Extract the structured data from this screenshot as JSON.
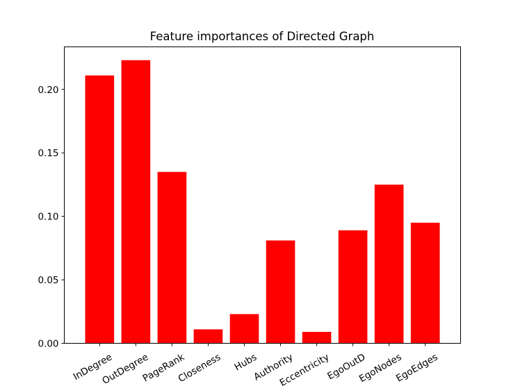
{
  "chart_data": {
    "type": "bar",
    "title": "Feature importances of Directed Graph",
    "xlabel": "",
    "ylabel": "",
    "categories": [
      "InDegree",
      "OutDegree",
      "PageRank",
      "Closeness",
      "Hubs",
      "Authority",
      "Eccentricity",
      "EgoOutD",
      "EgoNodes",
      "EgoEdges"
    ],
    "values": [
      0.211,
      0.223,
      0.135,
      0.011,
      0.023,
      0.081,
      0.009,
      0.089,
      0.125,
      0.095
    ],
    "ylim": [
      0,
      0.2335
    ],
    "yticks": [
      "0.00",
      "0.05",
      "0.10",
      "0.15",
      "0.20"
    ],
    "bar_color": "#ff0000",
    "grid": false
  }
}
